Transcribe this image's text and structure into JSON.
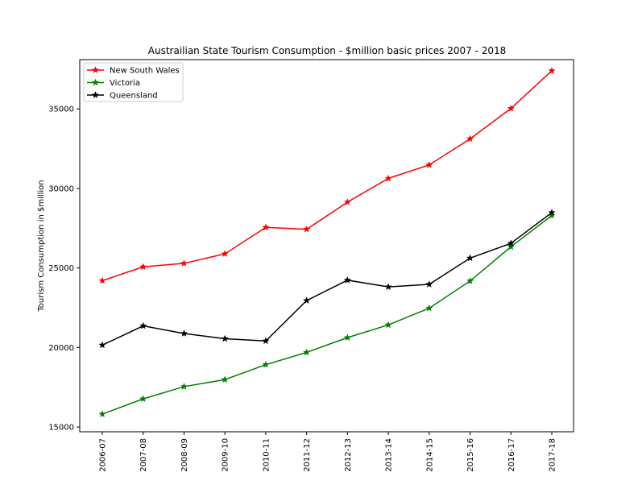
{
  "chart_data": {
    "type": "line",
    "title": "Austrailian State Tourism Consumption - $million basic prices 2007 - 2018",
    "xlabel": "",
    "ylabel": "Tourism Consumption in $million",
    "categories": [
      "2006-07",
      "2007-08",
      "2008-09",
      "2009-10",
      "2010-11",
      "2011-12",
      "2012-13",
      "2013-14",
      "2014-15",
      "2015-16",
      "2016-17",
      "2017-18"
    ],
    "ylim": [
      14700,
      38100
    ],
    "yticks": [
      15000,
      20000,
      25000,
      30000,
      35000
    ],
    "grid": false,
    "legend": "top-left",
    "series": [
      {
        "name": "New South Wales",
        "color": "#ff0000",
        "marker": "star",
        "values": [
          24200,
          25070,
          25290,
          25890,
          27550,
          27430,
          29140,
          30630,
          31480,
          33120,
          35030,
          37400
        ]
      },
      {
        "name": "Victoria",
        "color": "#008000",
        "marker": "star",
        "values": [
          15810,
          16770,
          17540,
          17980,
          18920,
          19690,
          20620,
          21420,
          22470,
          24180,
          26330,
          28300
        ]
      },
      {
        "name": "Queensland",
        "color": "#000000",
        "marker": "star",
        "values": [
          20150,
          21360,
          20880,
          20550,
          20410,
          22950,
          24230,
          23810,
          23970,
          25620,
          26550,
          28480
        ]
      }
    ]
  }
}
